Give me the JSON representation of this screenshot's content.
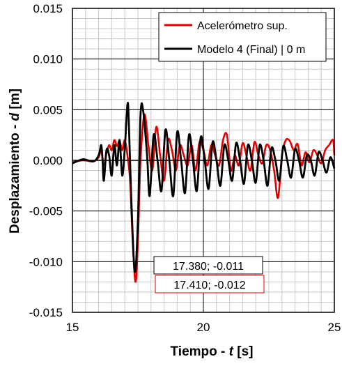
{
  "chart_data": {
    "type": "line",
    "xlabel": {
      "prefix": "Tiempo - ",
      "var": "t",
      "suffix": " [s]"
    },
    "ylabel": {
      "prefix": "Desplazamiento - ",
      "var": "d",
      "suffix": " [m]"
    },
    "xlim": [
      15,
      25
    ],
    "ylim": [
      -0.015,
      0.015
    ],
    "x_ticks": [
      15,
      20,
      25
    ],
    "x_tick_labels": [
      "15",
      "20",
      "25"
    ],
    "y_ticks": [
      -0.015,
      -0.01,
      -0.005,
      0.0,
      0.005,
      0.01,
      0.015
    ],
    "y_tick_labels": [
      "-0.015",
      "-0.010",
      "-0.005",
      "0.000",
      "0.005",
      "0.010",
      "0.015"
    ],
    "minor_grid": {
      "x_step": 0.5,
      "y_step": 0.001
    },
    "legend_position": "top-right",
    "series": [
      {
        "name": "Acelerómetro sup.",
        "color": "#e00000",
        "x": [
          15.0,
          15.4,
          15.8,
          16.0,
          16.1,
          16.2,
          16.3,
          16.4,
          16.5,
          16.6,
          16.7,
          16.8,
          16.9,
          17.0,
          17.1,
          17.2,
          17.3,
          17.41,
          17.5,
          17.6,
          17.75,
          17.9,
          18.05,
          18.2,
          18.35,
          18.5,
          18.65,
          18.8,
          18.95,
          19.1,
          19.25,
          19.4,
          19.55,
          19.7,
          19.85,
          20.0,
          20.15,
          20.3,
          20.45,
          20.6,
          20.75,
          20.9,
          21.05,
          21.2,
          21.35,
          21.5,
          21.65,
          21.8,
          21.95,
          22.1,
          22.25,
          22.4,
          22.55,
          22.7,
          22.85,
          23.0,
          23.15,
          23.3,
          23.45,
          23.6,
          23.75,
          23.9,
          24.05,
          24.2,
          24.35,
          24.5,
          24.65,
          24.8,
          24.95,
          25.0
        ],
        "y": [
          -0.0002,
          0.0,
          -0.0001,
          0.0003,
          0.001,
          -0.0005,
          0.0007,
          0.0015,
          0.001,
          0.002,
          0.0014,
          0.0019,
          0.001,
          0.002,
          0.0005,
          -0.002,
          -0.008,
          -0.012,
          -0.008,
          0.0,
          0.0045,
          0.0015,
          -0.001,
          0.0033,
          0.0005,
          -0.002,
          0.002,
          0.001,
          -0.001,
          0.0015,
          0.0005,
          -0.0005,
          0.0015,
          -0.001,
          0.0018,
          0.001,
          -0.0005,
          0.0015,
          0.0005,
          -0.0005,
          0.002,
          0.0025,
          -0.001,
          0.0005,
          -0.0005,
          0.0017,
          0.0004,
          -0.001,
          0.0018,
          0.0005,
          -0.0003,
          0.0015,
          0.001,
          -0.001,
          -0.0037,
          0.0005,
          0.002,
          0.0019,
          0.001,
          0.0016,
          -0.0005,
          0.0008,
          -0.0002,
          0.001,
          0.0005,
          -0.0003,
          0.001,
          0.0015,
          0.002,
          0.0005
        ]
      },
      {
        "name": "Modelo 4 (Final) | 0 m",
        "color": "#000000",
        "x": [
          15.0,
          15.4,
          15.8,
          16.0,
          16.1,
          16.15,
          16.2,
          16.3,
          16.4,
          16.5,
          16.6,
          16.7,
          16.8,
          16.9,
          17.0,
          17.1,
          17.15,
          17.25,
          17.38,
          17.5,
          17.6,
          17.7,
          17.85,
          17.95,
          18.1,
          18.25,
          18.4,
          18.55,
          18.7,
          18.85,
          19.0,
          19.15,
          19.3,
          19.45,
          19.6,
          19.75,
          19.9,
          20.05,
          20.2,
          20.35,
          20.5,
          20.65,
          20.8,
          20.95,
          21.1,
          21.25,
          21.4,
          21.55,
          21.7,
          21.85,
          22.0,
          22.15,
          22.3,
          22.45,
          22.6,
          22.75,
          22.9,
          23.05,
          23.2,
          23.35,
          23.5,
          23.65,
          23.8,
          23.95,
          24.1,
          24.25,
          24.4,
          24.55,
          24.7,
          24.85,
          25.0
        ],
        "y": [
          -0.0003,
          0.0001,
          -0.0001,
          0.0005,
          0.0015,
          0.0,
          -0.002,
          0.001,
          0.0005,
          -0.0015,
          0.0015,
          -0.0005,
          0.002,
          -0.0015,
          0.0012,
          0.0055,
          0.004,
          -0.004,
          -0.011,
          -0.006,
          0.0045,
          0.0049,
          0.0005,
          -0.0035,
          0.0025,
          0.0,
          -0.003,
          0.003,
          0.0,
          -0.0035,
          0.0028,
          0.0,
          -0.0032,
          0.0025,
          0.0,
          -0.003,
          0.0023,
          0.0,
          -0.0028,
          0.0018,
          0.0,
          -0.0025,
          0.0015,
          0.0,
          -0.002,
          0.0017,
          0.0,
          -0.0023,
          0.0015,
          0.0,
          -0.0022,
          0.0015,
          0.0,
          -0.0025,
          0.0012,
          0.0,
          -0.002,
          0.0014,
          0.0,
          -0.0017,
          0.0011,
          0.0,
          -0.0017,
          0.0005,
          0.0,
          -0.0015,
          0.0008,
          0.0,
          -0.0012,
          0.0003,
          -0.0008
        ]
      }
    ],
    "annotations": [
      {
        "text": "17.380; -0.011",
        "x": 17.38,
        "y": -0.011,
        "border_color": "#000000"
      },
      {
        "text": "17.410; -0.012",
        "x": 17.41,
        "y": -0.012,
        "border_color": "#e00000"
      }
    ]
  }
}
